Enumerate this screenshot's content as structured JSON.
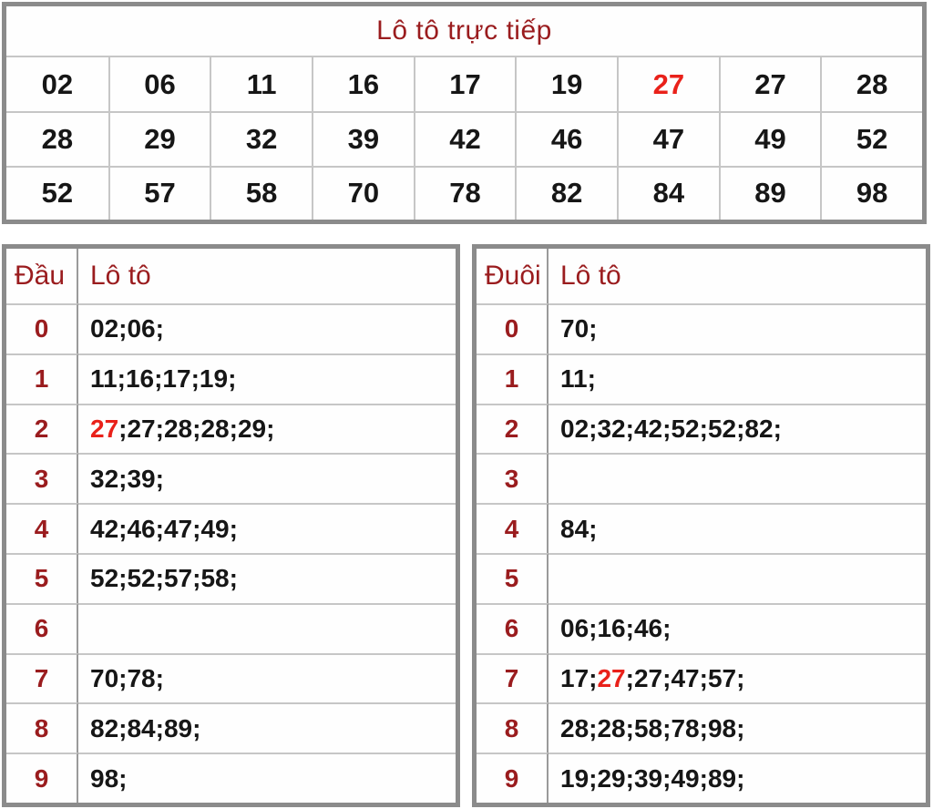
{
  "colors": {
    "dark_red": "#9a1c1e",
    "highlight_red": "#e9211a",
    "number_black": "#161616",
    "outer_border_gray": "#8b8b8b",
    "grid_line_gray": "#c6c6c6"
  },
  "top_table": {
    "title": "Lô tô trực tiếp",
    "rows": [
      [
        {
          "n": "02"
        },
        {
          "n": "06"
        },
        {
          "n": "11"
        },
        {
          "n": "16"
        },
        {
          "n": "17"
        },
        {
          "n": "19"
        },
        {
          "n": "27",
          "hl": true
        },
        {
          "n": "27"
        },
        {
          "n": "28"
        }
      ],
      [
        {
          "n": "28"
        },
        {
          "n": "29"
        },
        {
          "n": "32"
        },
        {
          "n": "39"
        },
        {
          "n": "42"
        },
        {
          "n": "46"
        },
        {
          "n": "47"
        },
        {
          "n": "49"
        },
        {
          "n": "52"
        }
      ],
      [
        {
          "n": "52"
        },
        {
          "n": "57"
        },
        {
          "n": "58"
        },
        {
          "n": "70"
        },
        {
          "n": "78"
        },
        {
          "n": "82"
        },
        {
          "n": "84"
        },
        {
          "n": "89"
        },
        {
          "n": "98"
        }
      ]
    ]
  },
  "dau_table": {
    "headers": {
      "digit": "Đầu",
      "values": "Lô tô"
    },
    "rows": [
      {
        "digit": "0",
        "values": [
          {
            "n": "02"
          },
          {
            "n": "06"
          }
        ]
      },
      {
        "digit": "1",
        "values": [
          {
            "n": "11"
          },
          {
            "n": "16"
          },
          {
            "n": "17"
          },
          {
            "n": "19"
          }
        ]
      },
      {
        "digit": "2",
        "values": [
          {
            "n": "27",
            "hl": true
          },
          {
            "n": "27"
          },
          {
            "n": "28"
          },
          {
            "n": "28"
          },
          {
            "n": "29"
          }
        ]
      },
      {
        "digit": "3",
        "values": [
          {
            "n": "32"
          },
          {
            "n": "39"
          }
        ]
      },
      {
        "digit": "4",
        "values": [
          {
            "n": "42"
          },
          {
            "n": "46"
          },
          {
            "n": "47"
          },
          {
            "n": "49"
          }
        ]
      },
      {
        "digit": "5",
        "values": [
          {
            "n": "52"
          },
          {
            "n": "52"
          },
          {
            "n": "57"
          },
          {
            "n": "58"
          }
        ]
      },
      {
        "digit": "6",
        "values": []
      },
      {
        "digit": "7",
        "values": [
          {
            "n": "70"
          },
          {
            "n": "78"
          }
        ]
      },
      {
        "digit": "8",
        "values": [
          {
            "n": "82"
          },
          {
            "n": "84"
          },
          {
            "n": "89"
          }
        ]
      },
      {
        "digit": "9",
        "values": [
          {
            "n": "98"
          }
        ]
      }
    ]
  },
  "duoi_table": {
    "headers": {
      "digit": "Đuôi",
      "values": "Lô tô"
    },
    "rows": [
      {
        "digit": "0",
        "values": [
          {
            "n": "70"
          }
        ]
      },
      {
        "digit": "1",
        "values": [
          {
            "n": "11"
          }
        ]
      },
      {
        "digit": "2",
        "values": [
          {
            "n": "02"
          },
          {
            "n": "32"
          },
          {
            "n": "42"
          },
          {
            "n": "52"
          },
          {
            "n": "52"
          },
          {
            "n": "82"
          }
        ]
      },
      {
        "digit": "3",
        "values": []
      },
      {
        "digit": "4",
        "values": [
          {
            "n": "84"
          }
        ]
      },
      {
        "digit": "5",
        "values": []
      },
      {
        "digit": "6",
        "values": [
          {
            "n": "06"
          },
          {
            "n": "16"
          },
          {
            "n": "46"
          }
        ]
      },
      {
        "digit": "7",
        "values": [
          {
            "n": "17"
          },
          {
            "n": "27",
            "hl": true
          },
          {
            "n": "27"
          },
          {
            "n": "47"
          },
          {
            "n": "57"
          }
        ]
      },
      {
        "digit": "8",
        "values": [
          {
            "n": "28"
          },
          {
            "n": "28"
          },
          {
            "n": "58"
          },
          {
            "n": "78"
          },
          {
            "n": "98"
          }
        ]
      },
      {
        "digit": "9",
        "values": [
          {
            "n": "19"
          },
          {
            "n": "29"
          },
          {
            "n": "39"
          },
          {
            "n": "49"
          },
          {
            "n": "89"
          }
        ]
      }
    ]
  }
}
